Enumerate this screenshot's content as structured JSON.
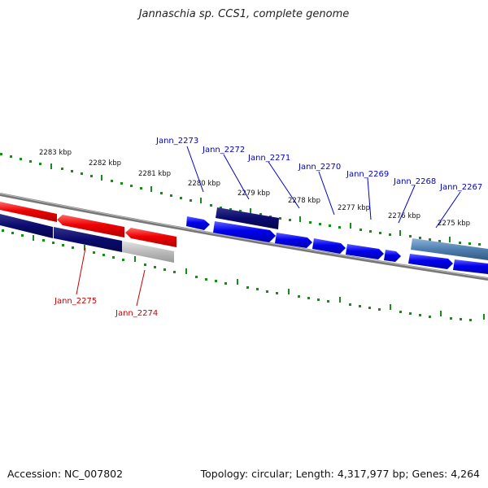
{
  "title": "Jannaschia sp. CCS1, complete genome",
  "accession": "Accession: NC_007802",
  "topology": "Topology: circular; Length: 4,317,977 bp; Genes: 4,264",
  "kbp_labels": [
    "2283 kbp",
    "2282 kbp",
    "2281 kbp",
    "2280 kbp",
    "2279 kbp",
    "2278 kbp",
    "2277 kbp",
    "2276 kbp",
    "2275 kbp"
  ],
  "genes_top": [
    "Jann_2273",
    "Jann_2272",
    "Jann_2271",
    "Jann_2270",
    "Jann_2269",
    "Jann_2268",
    "Jann_2267"
  ],
  "genes_bottom": [
    "Jann_2275",
    "Jann_2274"
  ],
  "colors": {
    "forward_gene": "#0000ee",
    "reverse_gene": "#ee0000",
    "dark_gene": "#0a0a6e",
    "pseudo_gene": "#bbbbbb",
    "steel_gene": "#4f7fb0",
    "tick": "#1a8a1a",
    "top_label": "#0000cc",
    "bottom_label": "#cc0000"
  }
}
